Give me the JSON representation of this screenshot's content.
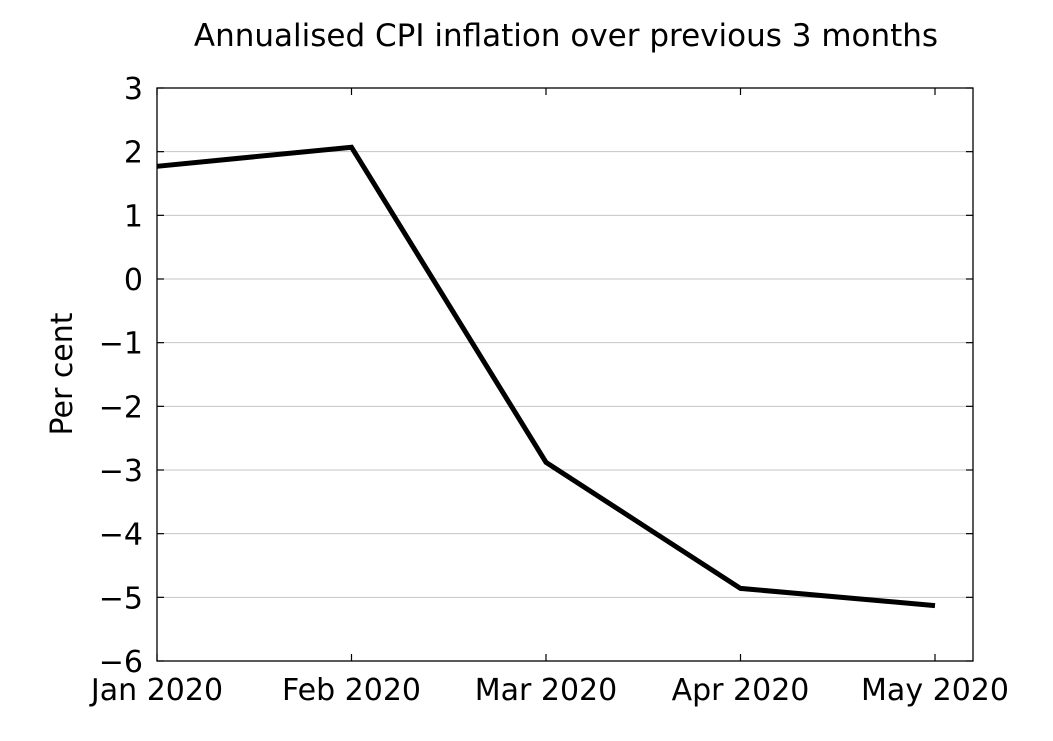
{
  "chart_data": {
    "type": "line",
    "title": "Annualised CPI inflation over previous 3 months",
    "xlabel": "",
    "ylabel": "Per cent",
    "categories": [
      "Jan 2020",
      "Feb 2020",
      "Mar 2020",
      "Apr 2020",
      "May 2020"
    ],
    "ylim": [
      -6,
      3
    ],
    "yticks": [
      3,
      2,
      1,
      0,
      -1,
      -2,
      -3,
      -4,
      -5,
      -6
    ],
    "ytick_labels": [
      "3",
      "2",
      "1",
      "0",
      "−1",
      "−2",
      "−3",
      "−4",
      "−5",
      "−6"
    ],
    "grid": "horizontal",
    "legend": "none",
    "series": [
      {
        "values": [
          1.77,
          2.07,
          -2.88,
          -4.86,
          -5.13
        ],
        "color": "#000000"
      }
    ]
  }
}
